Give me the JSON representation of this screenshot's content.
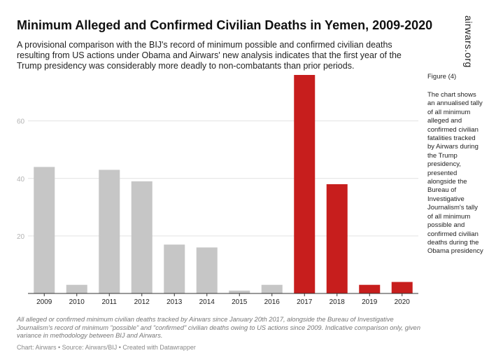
{
  "header": {
    "title": "Minimum Alleged and Confirmed Civilian Deaths in Yemen, 2009-2020",
    "subtitle": "A provisional comparison with the BIJ's record of minimum possible and confirmed civilian deaths resulting from US actions under Obama and Airwars' new analysis indicates that the first year of the Trump presidency was considerably more deadly to non-combatants than prior periods.",
    "brand": "airwars.org"
  },
  "sidebar": {
    "figure_label": "Figure (4)",
    "note": "The chart shows an annualised tally of all minimum alleged and confirmed civilian fatalities tracked by Airwars during the Trump presidency, presented alongside the Bureau of Investigative Journalism's tally of all minimum possible and confirmed civilian deaths during the Obama presidency"
  },
  "footer": {
    "footnote": "All alleged or confirmed minimum civilian deaths tracked by Airwars since January 20th 2017, alongside the Bureau of Investigative Journalism's record of minimum \"possible\" and \"confirmed\" civilian deaths owing to US actions since 2009. Indicative comparison only, given variance in methodology between BIJ and Airwars.",
    "credits": "Chart: Airwars • Source: Airwars/BIJ • Created with Datawrapper"
  },
  "colors": {
    "obama_bar": "#c6c6c6",
    "trump_bar": "#c71e1d",
    "gridline": "#e2e2e2",
    "tick_text": "#b3b3b3"
  },
  "chart_data": {
    "type": "bar",
    "title": "Minimum Alleged and Confirmed Civilian Deaths in Yemen, 2009-2020",
    "categories": [
      "2009",
      "2010",
      "2011",
      "2012",
      "2013",
      "2014",
      "2015",
      "2016",
      "2017",
      "2018",
      "2019",
      "2020"
    ],
    "values": [
      44,
      3,
      43,
      39,
      17,
      16,
      1,
      3,
      76,
      38,
      3,
      4
    ],
    "bar_colors": [
      "obama_bar",
      "obama_bar",
      "obama_bar",
      "obama_bar",
      "obama_bar",
      "obama_bar",
      "obama_bar",
      "obama_bar",
      "trump_bar",
      "trump_bar",
      "trump_bar",
      "trump_bar"
    ],
    "ylim": [
      0,
      76
    ],
    "yticks": [
      20,
      40,
      60
    ],
    "grid": true,
    "xlabel": "",
    "ylabel": ""
  }
}
